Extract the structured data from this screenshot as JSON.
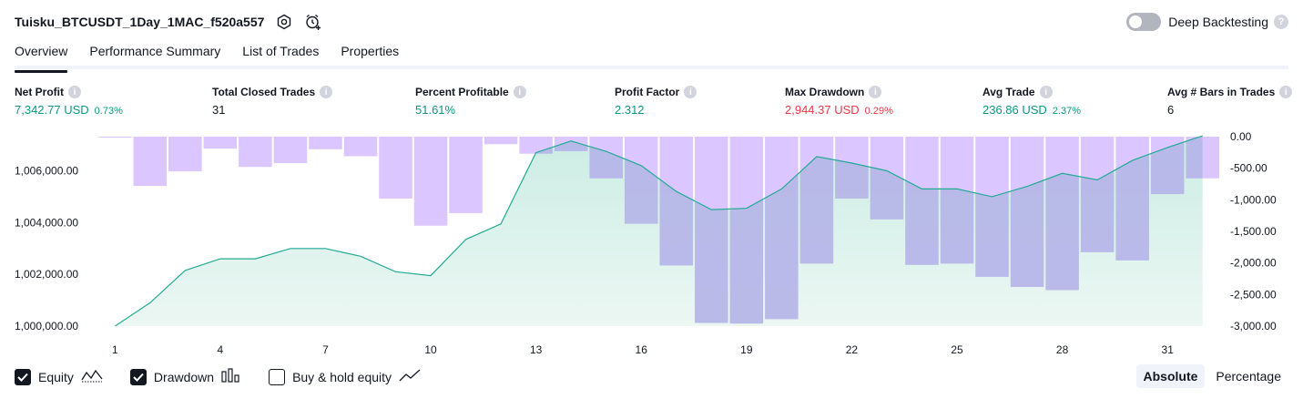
{
  "header": {
    "title": "Tuisku_BTCUSDT_1Day_1MAC_f520a557",
    "deep_backtesting_label": "Deep Backtesting",
    "deep_backtesting_on": false,
    "help_icon_text": "?"
  },
  "tabs": [
    {
      "label": "Overview",
      "active": true
    },
    {
      "label": "Performance Summary",
      "active": false
    },
    {
      "label": "List of Trades",
      "active": false
    },
    {
      "label": "Properties",
      "active": false
    }
  ],
  "metrics": [
    {
      "label": "Net Profit",
      "value": "7,342.77 USD",
      "sub": "0.73%",
      "color": "green"
    },
    {
      "label": "Total Closed Trades",
      "value": "31",
      "sub": "",
      "color": "dark"
    },
    {
      "label": "Percent Profitable",
      "value": "51.61%",
      "sub": "",
      "color": "green"
    },
    {
      "label": "Profit Factor",
      "value": "2.312",
      "sub": "",
      "color": "green"
    },
    {
      "label": "Max Drawdown",
      "value": "2,944.37 USD",
      "sub": "0.29%",
      "color": "red"
    },
    {
      "label": "Avg Trade",
      "value": "236.86 USD",
      "sub": "2.37%",
      "color": "green"
    },
    {
      "label": "Avg # Bars in Trades",
      "value": "6",
      "sub": "",
      "color": "dark"
    }
  ],
  "info_icon_text": "i",
  "colors": {
    "equity_line": "#22ab94",
    "equity_fill": "#d4efe8",
    "drawdown_bar": "#dcc6ff",
    "drawdown_overlap": "#b5b4e8",
    "positive": "#089981",
    "negative": "#f23645"
  },
  "chart_data": {
    "type": "line",
    "x": [
      1,
      2,
      3,
      4,
      5,
      6,
      7,
      8,
      9,
      10,
      11,
      12,
      13,
      14,
      15,
      16,
      17,
      18,
      19,
      20,
      21,
      22,
      23,
      24,
      25,
      26,
      27,
      28,
      29,
      30,
      31,
      32
    ],
    "x_ticks": [
      "1",
      "4",
      "7",
      "10",
      "13",
      "16",
      "19",
      "22",
      "25",
      "28",
      "31"
    ],
    "series": [
      {
        "axis": "left",
        "type": "area",
        "values": [
          1000000,
          1000900,
          1002150,
          1002600,
          1002600,
          1003000,
          1003000,
          1002700,
          1002100,
          1001950,
          1003350,
          1003950,
          1006700,
          1007150,
          1006750,
          1006200,
          1005200,
          1004500,
          1004550,
          1005300,
          1006550,
          1006300,
          1006000,
          1005300,
          1005300,
          1005000,
          1005400,
          1005900,
          1005650,
          1006400,
          1006900,
          1007350
        ]
      },
      {
        "axis": "right",
        "type": "bar",
        "values": [
          0,
          -780,
          -550,
          -190,
          -480,
          -420,
          -200,
          -310,
          -980,
          -1410,
          -1210,
          -120,
          -270,
          -230,
          -660,
          -1380,
          -2040,
          -2950,
          -2960,
          -2890,
          -2010,
          -980,
          -1310,
          -2030,
          -2010,
          -2220,
          -2380,
          -2430,
          -1830,
          -1960,
          -910,
          -660
        ]
      }
    ],
    "ylim_left": [
      1000000,
      1007320
    ],
    "ylim_right": [
      -3000,
      0
    ],
    "yticks_left": [
      "1,000,000.00",
      "1,002,000.00",
      "1,004,000.00",
      "1,006,000.00"
    ],
    "yticks_right": [
      "0.00",
      "-500.00",
      "-1,000.00",
      "-1,500.00",
      "-2,000.00",
      "-2,500.00",
      "-3,000.00"
    ],
    "grid": false
  },
  "legend": {
    "items": [
      {
        "label": "Equity",
        "checked": true,
        "icon": "equity-line-icon"
      },
      {
        "label": "Drawdown",
        "checked": true,
        "icon": "drawdown-bars-icon"
      },
      {
        "label": "Buy & hold equity",
        "checked": false,
        "icon": "buy-hold-line-icon"
      }
    ],
    "modes": [
      {
        "label": "Absolute",
        "active": true
      },
      {
        "label": "Percentage",
        "active": false
      }
    ]
  }
}
